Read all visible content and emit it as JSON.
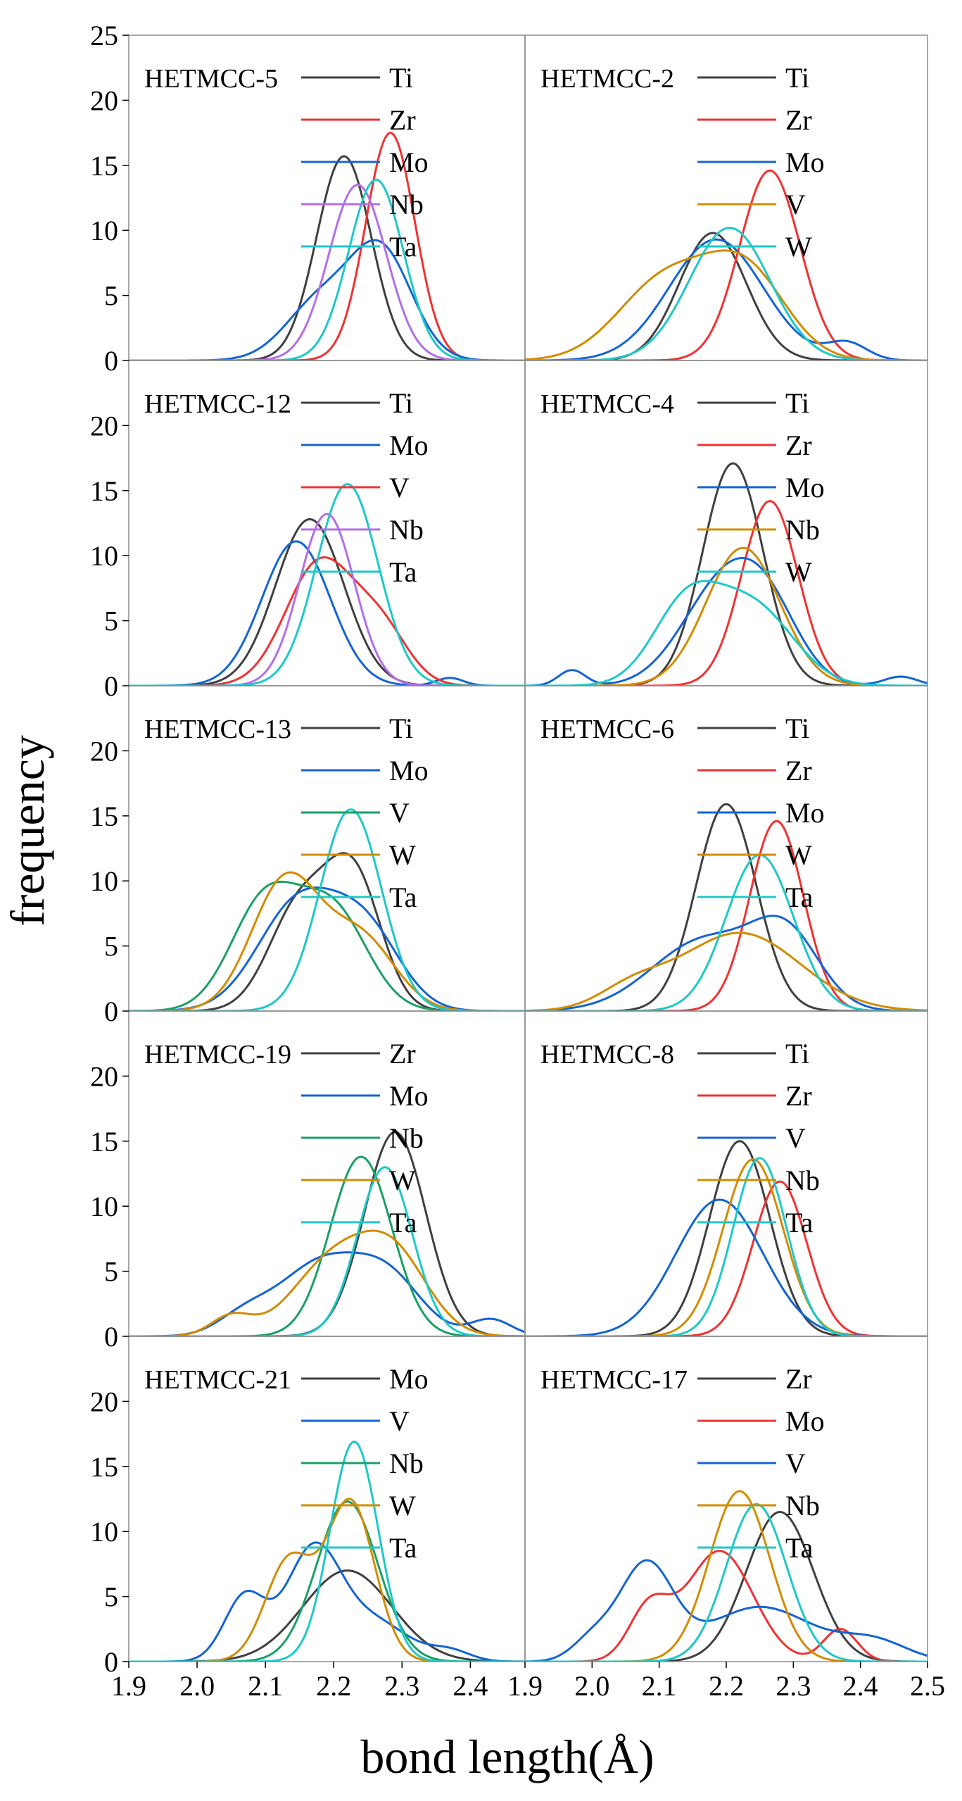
{
  "figure": {
    "ylabel": "frequency",
    "xlabel": "bond length(Å)",
    "x_ticks_left": [
      "1.9",
      "2.0",
      "2.1",
      "2.2",
      "2.3",
      "2.4"
    ],
    "x_ticks_right": [
      "1.9",
      "2.0",
      "2.1",
      "2.2",
      "2.3",
      "2.4",
      "2.5"
    ],
    "y_ticks_top": [
      "25",
      "20",
      "15",
      "10",
      "5",
      "0"
    ],
    "y_ticks": [
      "20",
      "15",
      "10",
      "5",
      "0"
    ]
  },
  "colors": {
    "Ti": "#404040",
    "Zr": "#f03232",
    "Mo": "#1464d2",
    "Nb": "#b46ee6",
    "Ta": "#1ec8c8",
    "V": "#d28c00",
    "W": "#1ec8c8"
  },
  "chart_data": [
    {
      "type": "line",
      "title": "HETMCC-5",
      "xlim": [
        1.9,
        2.48
      ],
      "ylim": [
        0,
        25
      ],
      "xlabel": "bond length(Å)",
      "ylabel": "frequency",
      "series": [
        {
          "name": "Ti",
          "color": "#404040",
          "peaks": [
            [
              2.215,
              15.7,
              0.04
            ]
          ]
        },
        {
          "name": "Zr",
          "color": "#f03232",
          "peaks": [
            [
              2.283,
              17.5,
              0.036
            ]
          ]
        },
        {
          "name": "Mo",
          "color": "#1464d2",
          "peaks": [
            [
              2.27,
              8.2,
              0.045
            ],
            [
              2.18,
              4.5,
              0.05
            ]
          ]
        },
        {
          "name": "Nb",
          "color": "#b46ee6",
          "peaks": [
            [
              2.235,
              13.5,
              0.042
            ]
          ]
        },
        {
          "name": "Ta",
          "color": "#1ec8c8",
          "peaks": [
            [
              2.262,
              13.9,
              0.04
            ]
          ]
        }
      ]
    },
    {
      "type": "line",
      "title": "HETMCC-2",
      "xlim": [
        1.9,
        2.5
      ],
      "ylim": [
        0,
        25
      ],
      "xlabel": "bond length(Å)",
      "ylabel": "frequency",
      "series": [
        {
          "name": "Ti",
          "color": "#404040",
          "peaks": [
            [
              2.18,
              9.8,
              0.05
            ]
          ]
        },
        {
          "name": "Zr",
          "color": "#f03232",
          "peaks": [
            [
              2.265,
              14.6,
              0.045
            ]
          ]
        },
        {
          "name": "Mo",
          "color": "#1464d2",
          "peaks": [
            [
              2.185,
              9.3,
              0.07
            ],
            [
              2.38,
              1.3,
              0.03
            ]
          ]
        },
        {
          "name": "V",
          "color": "#d28c00",
          "peaks": [
            [
              2.11,
              6.2,
              0.07
            ],
            [
              2.23,
              6.5,
              0.06
            ]
          ]
        },
        {
          "name": "W",
          "color": "#1ec8c8",
          "peaks": [
            [
              2.205,
              10.2,
              0.06
            ]
          ]
        }
      ]
    },
    {
      "type": "line",
      "title": "HETMCC-12",
      "xlim": [
        1.9,
        2.48
      ],
      "ylim": [
        0,
        25
      ],
      "xlabel": "bond length(Å)",
      "ylabel": "frequency",
      "series": [
        {
          "name": "Ti",
          "color": "#404040",
          "peaks": [
            [
              2.165,
              12.8,
              0.05
            ]
          ]
        },
        {
          "name": "Mo",
          "color": "#1464d2",
          "peaks": [
            [
              2.145,
              11.1,
              0.05
            ],
            [
              2.37,
              0.6,
              0.02
            ]
          ]
        },
        {
          "name": "V",
          "color": "#f03232",
          "peaks": [
            [
              2.18,
              9.5,
              0.05
            ],
            [
              2.27,
              4.0,
              0.04
            ]
          ]
        },
        {
          "name": "Nb",
          "color": "#b46ee6",
          "peaks": [
            [
              2.19,
              13.2,
              0.04
            ]
          ]
        },
        {
          "name": "Ta",
          "color": "#1ec8c8",
          "peaks": [
            [
              2.22,
              15.5,
              0.045
            ]
          ]
        }
      ]
    },
    {
      "type": "line",
      "title": "HETMCC-4",
      "xlim": [
        1.9,
        2.5
      ],
      "ylim": [
        0,
        25
      ],
      "xlabel": "bond length(Å)",
      "ylabel": "frequency",
      "series": [
        {
          "name": "Ti",
          "color": "#404040",
          "peaks": [
            [
              2.21,
              17.1,
              0.045
            ]
          ]
        },
        {
          "name": "Zr",
          "color": "#f03232",
          "peaks": [
            [
              2.265,
              14.2,
              0.042
            ]
          ]
        },
        {
          "name": "Mo",
          "color": "#1464d2",
          "peaks": [
            [
              2.19,
              7.0,
              0.06
            ],
            [
              2.26,
              5.0,
              0.05
            ],
            [
              1.97,
              1.2,
              0.02
            ],
            [
              2.46,
              0.7,
              0.025
            ]
          ]
        },
        {
          "name": "Nb",
          "color": "#d28c00",
          "peaks": [
            [
              2.225,
              10.6,
              0.055
            ]
          ]
        },
        {
          "name": "W",
          "color": "#1ec8c8",
          "peaks": [
            [
              2.14,
              6.0,
              0.05
            ],
            [
              2.24,
              6.0,
              0.06
            ]
          ]
        }
      ]
    },
    {
      "type": "line",
      "title": "HETMCC-13",
      "xlim": [
        1.9,
        2.48
      ],
      "ylim": [
        0,
        25
      ],
      "xlabel": "bond length(Å)",
      "ylabel": "frequency",
      "series": [
        {
          "name": "Ti",
          "color": "#404040",
          "peaks": [
            [
              2.15,
              8.0,
              0.045
            ],
            [
              2.23,
              10.0,
              0.04
            ]
          ]
        },
        {
          "name": "Mo",
          "color": "#1464d2",
          "peaks": [
            [
              2.15,
              8.4,
              0.06
            ],
            [
              2.25,
              5.5,
              0.05
            ]
          ]
        },
        {
          "name": "V",
          "color": "#1aa064",
          "peaks": [
            [
              2.1,
              8.5,
              0.05
            ],
            [
              2.2,
              7.5,
              0.05
            ]
          ]
        },
        {
          "name": "W",
          "color": "#d28c00",
          "peaks": [
            [
              2.13,
              10.1,
              0.05
            ],
            [
              2.24,
              5.5,
              0.05
            ]
          ]
        },
        {
          "name": "Ta",
          "color": "#1ec8c8",
          "peaks": [
            [
              2.225,
              15.5,
              0.045
            ]
          ]
        }
      ]
    },
    {
      "type": "line",
      "title": "HETMCC-6",
      "xlim": [
        1.9,
        2.5
      ],
      "ylim": [
        0,
        25
      ],
      "xlabel": "bond length(Å)",
      "ylabel": "frequency",
      "series": [
        {
          "name": "Ti",
          "color": "#404040",
          "peaks": [
            [
              2.2,
              15.9,
              0.045
            ]
          ]
        },
        {
          "name": "Zr",
          "color": "#f03232",
          "peaks": [
            [
              2.275,
              14.6,
              0.04
            ]
          ]
        },
        {
          "name": "Mo",
          "color": "#1464d2",
          "peaks": [
            [
              2.17,
              5.5,
              0.08
            ],
            [
              2.29,
              5.2,
              0.05
            ]
          ]
        },
        {
          "name": "W",
          "color": "#d28c00",
          "peaks": [
            [
              2.22,
              6.0,
              0.09
            ],
            [
              2.06,
              1.5,
              0.05
            ]
          ]
        },
        {
          "name": "Ta",
          "color": "#1ec8c8",
          "peaks": [
            [
              2.25,
              12.0,
              0.05
            ]
          ]
        }
      ]
    },
    {
      "type": "line",
      "title": "HETMCC-19",
      "xlim": [
        1.9,
        2.48
      ],
      "ylim": [
        0,
        25
      ],
      "xlabel": "bond length(Å)",
      "ylabel": "frequency",
      "series": [
        {
          "name": "Zr",
          "color": "#404040",
          "peaks": [
            [
              2.29,
              15.7,
              0.045
            ]
          ]
        },
        {
          "name": "Mo",
          "color": "#1464d2",
          "peaks": [
            [
              2.18,
              5.5,
              0.06
            ],
            [
              2.28,
              4.2,
              0.05
            ],
            [
              2.43,
              1.3,
              0.03
            ],
            [
              2.07,
              1.5,
              0.04
            ]
          ]
        },
        {
          "name": "Nb",
          "color": "#1aa064",
          "peaks": [
            [
              2.24,
              13.8,
              0.045
            ]
          ]
        },
        {
          "name": "W",
          "color": "#d28c00",
          "peaks": [
            [
              2.2,
              5.8,
              0.06
            ],
            [
              2.29,
              5.5,
              0.05
            ],
            [
              2.05,
              1.5,
              0.03
            ]
          ]
        },
        {
          "name": "Ta",
          "color": "#1ec8c8",
          "peaks": [
            [
              2.275,
              13.0,
              0.04
            ]
          ]
        }
      ]
    },
    {
      "type": "line",
      "title": "HETMCC-8",
      "xlim": [
        1.9,
        2.5
      ],
      "ylim": [
        0,
        25
      ],
      "xlabel": "bond length(Å)",
      "ylabel": "frequency",
      "series": [
        {
          "name": "Ti",
          "color": "#404040",
          "peaks": [
            [
              2.22,
              15.0,
              0.045
            ]
          ]
        },
        {
          "name": "Zr",
          "color": "#f03232",
          "peaks": [
            [
              2.28,
              11.9,
              0.04
            ]
          ]
        },
        {
          "name": "V",
          "color": "#1464d2",
          "peaks": [
            [
              2.19,
              10.5,
              0.065
            ]
          ]
        },
        {
          "name": "Nb",
          "color": "#d28c00",
          "peaks": [
            [
              2.24,
              13.6,
              0.045
            ]
          ]
        },
        {
          "name": "Ta",
          "color": "#1ec8c8",
          "peaks": [
            [
              2.25,
              13.7,
              0.04
            ]
          ]
        }
      ]
    },
    {
      "type": "line",
      "title": "HETMCC-21",
      "xlim": [
        1.9,
        2.48
      ],
      "ylim": [
        0,
        25
      ],
      "xlabel": "bond length(Å)",
      "ylabel": "frequency",
      "series": [
        {
          "name": "Mo",
          "color": "#404040",
          "peaks": [
            [
              2.22,
              7.0,
              0.065
            ]
          ]
        },
        {
          "name": "V",
          "color": "#1464d2",
          "peaks": [
            [
              2.07,
              5.0,
              0.03
            ],
            [
              2.17,
              8.5,
              0.04
            ],
            [
              2.26,
              3.0,
              0.05
            ],
            [
              2.37,
              0.8,
              0.03
            ]
          ]
        },
        {
          "name": "Nb",
          "color": "#1aa064",
          "peaks": [
            [
              2.22,
              12.3,
              0.045
            ]
          ]
        },
        {
          "name": "W",
          "color": "#d28c00",
          "peaks": [
            [
              2.135,
              7.8,
              0.035
            ],
            [
              2.225,
              12.2,
              0.035
            ]
          ]
        },
        {
          "name": "Ta",
          "color": "#1ec8c8",
          "peaks": [
            [
              2.23,
              16.9,
              0.035
            ]
          ]
        }
      ]
    },
    {
      "type": "line",
      "title": "HETMCC-17",
      "xlim": [
        1.9,
        2.5
      ],
      "ylim": [
        0,
        25
      ],
      "xlabel": "bond length(Å)",
      "ylabel": "frequency",
      "series": [
        {
          "name": "Zr",
          "color": "#404040",
          "peaks": [
            [
              2.28,
              11.5,
              0.05
            ]
          ]
        },
        {
          "name": "Mo",
          "color": "#f03232",
          "peaks": [
            [
              2.085,
              4.0,
              0.03
            ],
            [
              2.19,
              8.5,
              0.05
            ],
            [
              2.37,
              2.5,
              0.025
            ]
          ]
        },
        {
          "name": "V",
          "color": "#1464d2",
          "peaks": [
            [
              2.08,
              7.3,
              0.04
            ],
            [
              2.25,
              4.2,
              0.08
            ],
            [
              2.0,
              1.6,
              0.03
            ],
            [
              2.42,
              1.5,
              0.05
            ]
          ]
        },
        {
          "name": "Nb",
          "color": "#d28c00",
          "peaks": [
            [
              2.22,
              13.1,
              0.045
            ]
          ]
        },
        {
          "name": "Ta",
          "color": "#1ec8c8",
          "peaks": [
            [
              2.245,
              12.1,
              0.045
            ]
          ]
        }
      ]
    }
  ]
}
